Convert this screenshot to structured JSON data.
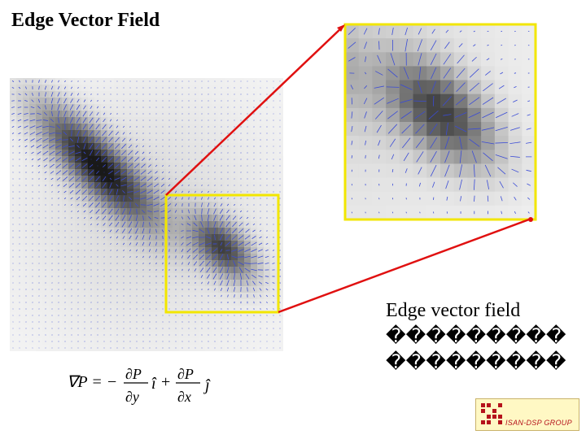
{
  "slide": {
    "title": "Edge Vector Field",
    "caption_line1": "Edge vector field",
    "caption_line2": "���������",
    "caption_line3": "���������",
    "formula": {
      "lhs": "∇P = −",
      "d": "∂",
      "P": "P",
      "y": "y",
      "x": "x",
      "ihat": "î",
      "plus": "+",
      "jhat": "ĵ"
    },
    "logo_text": "ISAN-DSP GROUP"
  },
  "colors": {
    "highlight_box": "#f2e600",
    "arrow": "#e01010",
    "vector": "#3a4bd6",
    "logo_red": "#b5121b"
  }
}
